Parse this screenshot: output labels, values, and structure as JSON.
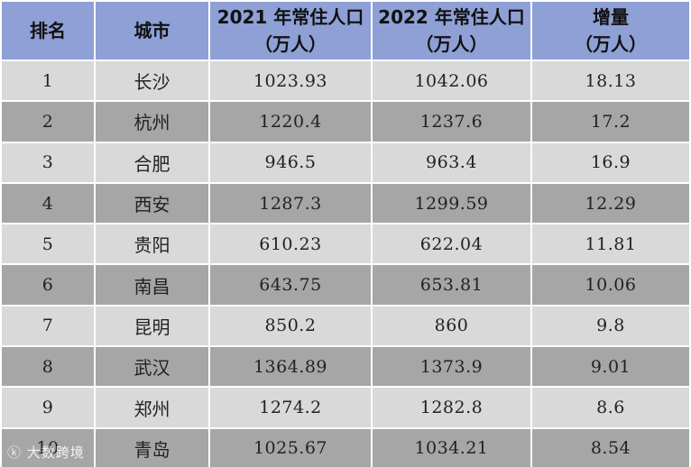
{
  "chart_data": {
    "type": "table",
    "columns": [
      {
        "line1": "排名",
        "line2": ""
      },
      {
        "line1": "城市",
        "line2": ""
      },
      {
        "line1": "2021 年常住人口",
        "line2": "（万人）"
      },
      {
        "line1": "2022 年常住人口",
        "line2": "（万人）"
      },
      {
        "line1": "增量",
        "line2": "（万人）"
      }
    ],
    "rows": [
      {
        "rank": "1",
        "city": "长沙",
        "pop2021": "1023.93",
        "pop2022": "1042.06",
        "increase": "18.13"
      },
      {
        "rank": "2",
        "city": "杭州",
        "pop2021": "1220.4",
        "pop2022": "1237.6",
        "increase": "17.2"
      },
      {
        "rank": "3",
        "city": "合肥",
        "pop2021": "946.5",
        "pop2022": "963.4",
        "increase": "16.9"
      },
      {
        "rank": "4",
        "city": "西安",
        "pop2021": "1287.3",
        "pop2022": "1299.59",
        "increase": "12.29"
      },
      {
        "rank": "5",
        "city": "贵阳",
        "pop2021": "610.23",
        "pop2022": "622.04",
        "increase": "11.81"
      },
      {
        "rank": "6",
        "city": "南昌",
        "pop2021": "643.75",
        "pop2022": "653.81",
        "increase": "10.06"
      },
      {
        "rank": "7",
        "city": "昆明",
        "pop2021": "850.2",
        "pop2022": "860",
        "increase": "9.8"
      },
      {
        "rank": "8",
        "city": "武汉",
        "pop2021": "1364.89",
        "pop2022": "1373.9",
        "increase": "9.01"
      },
      {
        "rank": "9",
        "city": "郑州",
        "pop2021": "1274.2",
        "pop2022": "1282.8",
        "increase": "8.6"
      },
      {
        "rank": "10",
        "city": "青岛",
        "pop2021": "1025.67",
        "pop2022": "1034.21",
        "increase": "8.54"
      }
    ]
  },
  "colors": {
    "header_bg": "#8ea0d5",
    "row_light": "#d9d9d9",
    "row_dark": "#a6a6a6"
  },
  "watermark": {
    "text": "大数跨境",
    "logo_icon": "logo-icon"
  }
}
